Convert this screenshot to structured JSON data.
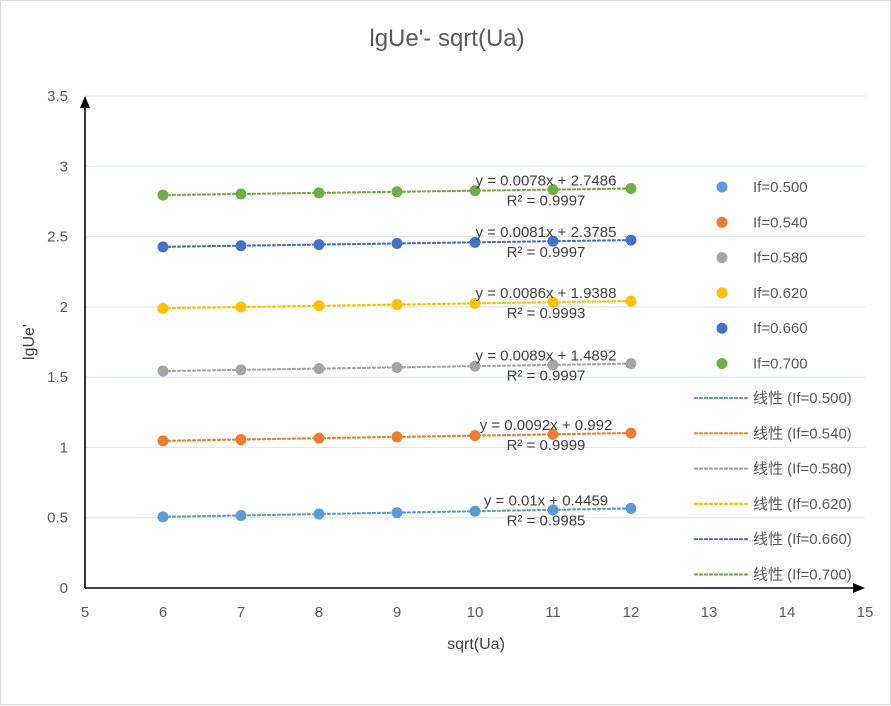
{
  "chart_data": {
    "type": "scatter",
    "title": "lgUe'- sqrt(Ua)",
    "xlabel": "sqrt(Ua)",
    "ylabel": "lgUe'",
    "xlim": [
      5,
      15
    ],
    "ylim": [
      0,
      3.5
    ],
    "xticks": [
      "5",
      "6",
      "7",
      "8",
      "9",
      "10",
      "11",
      "12",
      "13",
      "14",
      "15"
    ],
    "yticks": [
      "0",
      "0.5",
      "1",
      "1.5",
      "2",
      "2.5",
      "3",
      "3.5"
    ],
    "grid": "horizontal",
    "legend_position": "right",
    "x": [
      6,
      7,
      8,
      9,
      10,
      11,
      12
    ],
    "series": [
      {
        "name": "If=0.500",
        "color": "#5b9bd5",
        "values": [
          0.506,
          0.516,
          0.526,
          0.536,
          0.546,
          0.556,
          0.566
        ],
        "trend_name": "线性 (If=0.500)",
        "equation": "y = 0.01x + 0.4459",
        "r2": "R² = 0.9985"
      },
      {
        "name": "If=0.540",
        "color": "#ed7d31",
        "values": [
          1.047,
          1.056,
          1.066,
          1.075,
          1.084,
          1.093,
          1.102
        ],
        "trend_name": "线性 (If=0.540)",
        "equation": "y = 0.0092x + 0.992",
        "r2": "R² = 0.9999"
      },
      {
        "name": "If=0.580",
        "color": "#a5a5a5",
        "values": [
          1.543,
          1.552,
          1.561,
          1.569,
          1.578,
          1.587,
          1.596
        ],
        "trend_name": "线性 (If=0.580)",
        "equation": "y = 0.0089x + 1.4892",
        "r2": "R² = 0.9997"
      },
      {
        "name": "If=0.620",
        "color": "#ffc000",
        "values": [
          1.989,
          1.999,
          2.008,
          2.017,
          2.025,
          2.033,
          2.041
        ],
        "trend_name": "线性 (If=0.620)",
        "equation": "y = 0.0086x + 1.9388",
        "r2": "R² = 0.9993"
      },
      {
        "name": "If=0.660",
        "color": "#4472c4",
        "values": [
          2.427,
          2.435,
          2.443,
          2.451,
          2.459,
          2.467,
          2.475
        ],
        "trend_name": "线性 (If=0.660)",
        "equation": "y = 0.0081x + 2.3785",
        "r2": "R² = 0.9997"
      },
      {
        "name": "If=0.700",
        "color": "#70ad47",
        "values": [
          2.795,
          2.803,
          2.811,
          2.819,
          2.826,
          2.834,
          2.842
        ],
        "trend_name": "线性 (If=0.700)",
        "equation": "y = 0.0078x + 2.7486",
        "r2": "R² = 0.9997"
      }
    ]
  }
}
